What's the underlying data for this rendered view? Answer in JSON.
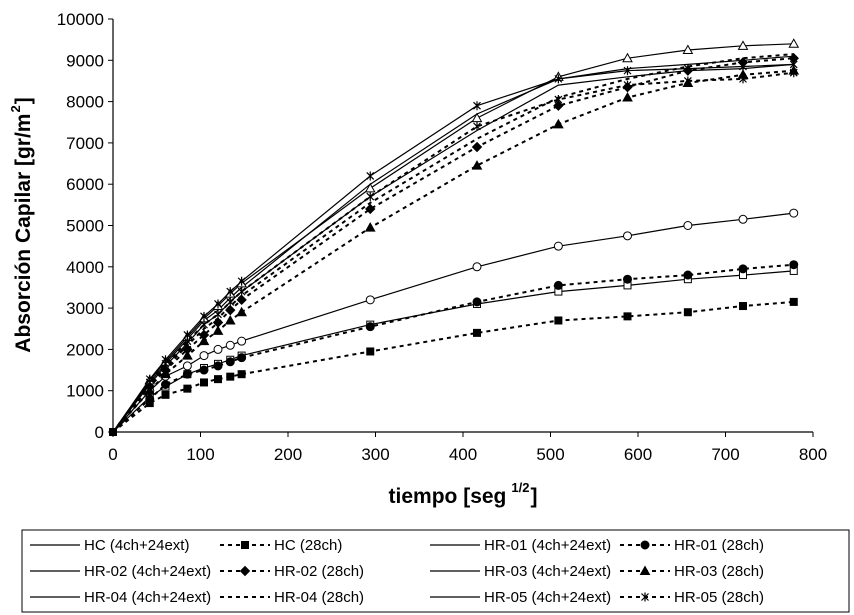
{
  "chart_data": {
    "type": "line",
    "xlabel": "tiempo [seg",
    "xlabel_sup": "1/2",
    "xlabel_end": "]",
    "ylabel": "Absorción Capilar [gr/m",
    "ylabel_sup": "2",
    "ylabel_end": "]",
    "xlim": [
      0,
      800
    ],
    "ylim": [
      0,
      10000
    ],
    "xticks": [
      0,
      100,
      200,
      300,
      400,
      500,
      600,
      700,
      800
    ],
    "yticks": [
      0,
      1000,
      2000,
      3000,
      4000,
      5000,
      6000,
      7000,
      8000,
      9000,
      10000
    ],
    "grid": false,
    "legend_position": "bottom",
    "x": [
      0,
      42,
      60,
      85,
      104,
      120,
      134,
      147,
      294,
      416,
      509,
      588,
      657,
      720,
      778
    ],
    "series": [
      {
        "name": "HC (4ch+24ext)",
        "style": "solid",
        "marker": "open-square",
        "values": [
          0,
          850,
          1100,
          1400,
          1550,
          1650,
          1750,
          1850,
          2600,
          3100,
          3400,
          3550,
          3700,
          3800,
          3900
        ]
      },
      {
        "name": "HC (28ch)",
        "style": "dashed",
        "marker": "filled-square",
        "values": [
          0,
          700,
          900,
          1050,
          1200,
          1280,
          1340,
          1400,
          1950,
          2400,
          2700,
          2800,
          2900,
          3050,
          3150
        ]
      },
      {
        "name": "HR-01 (4ch+24ext)",
        "style": "solid",
        "marker": "open-circle",
        "values": [
          0,
          1000,
          1350,
          1600,
          1850,
          2000,
          2100,
          2200,
          3200,
          4000,
          4500,
          4750,
          5000,
          5150,
          5300
        ]
      },
      {
        "name": "HR-01 (28ch)",
        "style": "dashed",
        "marker": "filled-circle",
        "values": [
          0,
          800,
          1150,
          1400,
          1500,
          1600,
          1700,
          1800,
          2550,
          3150,
          3550,
          3700,
          3800,
          3950,
          4050
        ]
      },
      {
        "name": "HR-02 (4ch+24ext)",
        "style": "solid",
        "marker": "none",
        "values": [
          0,
          1200,
          1650,
          2250,
          2700,
          2950,
          3250,
          3500,
          6000,
          7700,
          8550,
          8800,
          8900,
          9000,
          9100
        ]
      },
      {
        "name": "HR-02 (28ch)",
        "style": "dashed",
        "marker": "filled-diamond",
        "values": [
          0,
          1100,
          1500,
          2000,
          2350,
          2650,
          2950,
          3200,
          5400,
          6900,
          7900,
          8350,
          8750,
          8950,
          9050
        ]
      },
      {
        "name": "HR-03 (4ch+24ext)",
        "style": "solid",
        "marker": "none",
        "values": [
          0,
          1150,
          1600,
          2150,
          2600,
          2850,
          3150,
          3400,
          5700,
          7300,
          8400,
          8600,
          8750,
          8800,
          8900
        ]
      },
      {
        "name": "HR-03 (28ch)",
        "style": "dashed",
        "marker": "filled-triangle",
        "values": [
          0,
          1000,
          1400,
          1850,
          2200,
          2450,
          2700,
          2900,
          4950,
          6450,
          7450,
          8100,
          8450,
          8650,
          8750
        ]
      },
      {
        "name": "HR-04 (4ch+24ext)",
        "style": "solid",
        "marker": "open-triangle",
        "values": [
          0,
          1250,
          1700,
          2300,
          2750,
          3050,
          3350,
          3600,
          5900,
          7600,
          8600,
          9050,
          9250,
          9350,
          9400
        ]
      },
      {
        "name": "HR-04 (28ch)",
        "style": "dashed",
        "marker": "none",
        "values": [
          0,
          1150,
          1550,
          2100,
          2500,
          2750,
          3050,
          3300,
          5550,
          7100,
          8100,
          8550,
          8850,
          9050,
          9150
        ]
      },
      {
        "name": "HR-05 (4ch+24ext)",
        "style": "solid",
        "marker": "star",
        "values": [
          0,
          1280,
          1750,
          2350,
          2800,
          3100,
          3400,
          3650,
          6200,
          7900,
          8550,
          8750,
          8800,
          8850,
          8900
        ]
      },
      {
        "name": "HR-05 (28ch)",
        "style": "dashed",
        "marker": "star",
        "values": [
          0,
          1200,
          1650,
          2200,
          2600,
          2850,
          3150,
          3400,
          5700,
          7400,
          8050,
          8400,
          8500,
          8550,
          8700
        ]
      }
    ]
  }
}
